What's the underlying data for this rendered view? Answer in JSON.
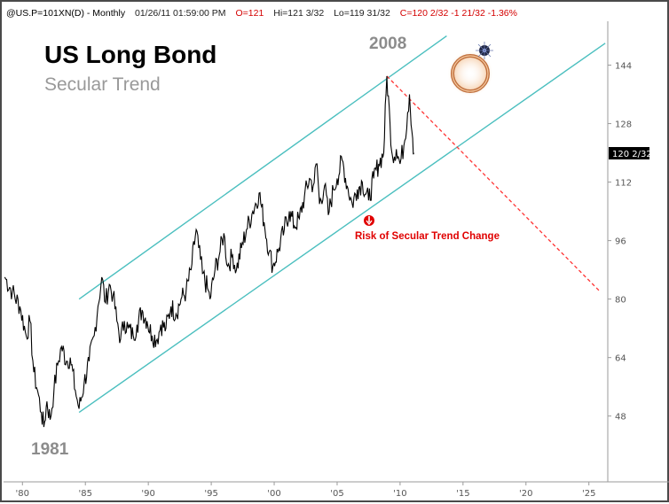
{
  "header": {
    "symbol": "@US.P=101XN(D) - Monthly",
    "datetime": "01/26/11  01:59:00 PM",
    "open": "O=121",
    "high": "Hi=121 3/32",
    "low": "Lo=119 31/32",
    "close_change": "C=120 2/32  -1 21/32  -1.36%"
  },
  "colors": {
    "price_line": "#000000",
    "channel": "#4bbfbf",
    "projection": "#ff3333",
    "annotation": "#e00000",
    "year_label": "#8c8c8c"
  },
  "chart_data": {
    "type": "line",
    "title": "US Long Bond",
    "subtitle": "Secular Trend",
    "x_range": [
      1978.5,
      2026.5
    ],
    "ylim": [
      30,
      156
    ],
    "x_tick_labels": [
      {
        "value": 1980,
        "label": "'80"
      },
      {
        "value": 1985,
        "label": "'85"
      },
      {
        "value": 1990,
        "label": "'90"
      },
      {
        "value": 1995,
        "label": "'95"
      },
      {
        "value": 2000,
        "label": "'00"
      },
      {
        "value": 2005,
        "label": "'05"
      },
      {
        "value": 2010,
        "label": "'10"
      },
      {
        "value": 2015,
        "label": "'15"
      },
      {
        "value": 2020,
        "label": "'20"
      },
      {
        "value": 2025,
        "label": "'25"
      }
    ],
    "y_ticks": [
      48,
      64,
      80,
      96,
      112,
      128,
      144
    ],
    "last_value": 120.06,
    "last_value_label": "120 2/32",
    "series": [
      {
        "values": [
          [
            1978.6,
            86
          ],
          [
            1979.2,
            82
          ],
          [
            1979.8,
            78
          ],
          [
            1980.3,
            70
          ],
          [
            1980.6,
            74
          ],
          [
            1980.9,
            60
          ],
          [
            1981.2,
            55
          ],
          [
            1981.5,
            49
          ],
          [
            1981.7,
            45
          ],
          [
            1981.95,
            52
          ],
          [
            1982.2,
            47
          ],
          [
            1982.5,
            55
          ],
          [
            1982.8,
            62
          ],
          [
            1983.1,
            67
          ],
          [
            1983.5,
            63
          ],
          [
            1983.8,
            64
          ],
          [
            1984.2,
            55
          ],
          [
            1984.5,
            50
          ],
          [
            1984.9,
            57
          ],
          [
            1985.3,
            63
          ],
          [
            1985.7,
            70
          ],
          [
            1986.0,
            78
          ],
          [
            1986.3,
            86
          ],
          [
            1986.6,
            79
          ],
          [
            1986.9,
            84
          ],
          [
            1987.2,
            81
          ],
          [
            1987.5,
            74
          ],
          [
            1987.8,
            69
          ],
          [
            1988.1,
            74
          ],
          [
            1988.4,
            72
          ],
          [
            1988.8,
            70
          ],
          [
            1989.1,
            73
          ],
          [
            1989.5,
            77
          ],
          [
            1989.9,
            74
          ],
          [
            1990.3,
            70
          ],
          [
            1990.7,
            69
          ],
          [
            1991.0,
            73
          ],
          [
            1991.4,
            72
          ],
          [
            1991.8,
            78
          ],
          [
            1992.2,
            76
          ],
          [
            1992.6,
            80
          ],
          [
            1993.0,
            82
          ],
          [
            1993.4,
            88
          ],
          [
            1993.8,
            99
          ],
          [
            1994.0,
            94
          ],
          [
            1994.3,
            87
          ],
          [
            1994.7,
            83
          ],
          [
            1994.9,
            80
          ],
          [
            1995.3,
            88
          ],
          [
            1995.7,
            93
          ],
          [
            1996.0,
            98
          ],
          [
            1996.3,
            89
          ],
          [
            1996.7,
            92
          ],
          [
            1997.0,
            88
          ],
          [
            1997.4,
            94
          ],
          [
            1997.8,
            99
          ],
          [
            1998.3,
            104
          ],
          [
            1998.8,
            109
          ],
          [
            1999.2,
            101
          ],
          [
            1999.6,
            93
          ],
          [
            1999.9,
            89
          ],
          [
            2000.3,
            93
          ],
          [
            2000.8,
            99
          ],
          [
            2001.2,
            104
          ],
          [
            2001.6,
            100
          ],
          [
            2002.0,
            102
          ],
          [
            2002.4,
            108
          ],
          [
            2002.8,
            113
          ],
          [
            2003.1,
            111
          ],
          [
            2003.4,
            117
          ],
          [
            2003.6,
            106
          ],
          [
            2004.0,
            111
          ],
          [
            2004.3,
            103
          ],
          [
            2004.7,
            110
          ],
          [
            2005.0,
            113
          ],
          [
            2005.4,
            118
          ],
          [
            2005.8,
            111
          ],
          [
            2006.2,
            106
          ],
          [
            2006.6,
            110
          ],
          [
            2007.0,
            112
          ],
          [
            2007.5,
            107
          ],
          [
            2007.9,
            113
          ],
          [
            2008.3,
            117
          ],
          [
            2008.7,
            120
          ],
          [
            2008.95,
            141
          ],
          [
            2009.2,
            128
          ],
          [
            2009.4,
            119
          ],
          [
            2009.7,
            121
          ],
          [
            2010.0,
            117
          ],
          [
            2010.3,
            122
          ],
          [
            2010.6,
            131
          ],
          [
            2010.75,
            136
          ],
          [
            2011.0,
            124
          ],
          [
            2011.1,
            120
          ]
        ]
      }
    ],
    "annotations": [
      {
        "text": "2008",
        "x": 2008.95,
        "y": 141
      },
      {
        "text": "1981",
        "x": 1981.7,
        "y": 45
      },
      {
        "text": "Risk of Secular Trend Change",
        "x": 2006.2,
        "y": 103
      }
    ]
  }
}
